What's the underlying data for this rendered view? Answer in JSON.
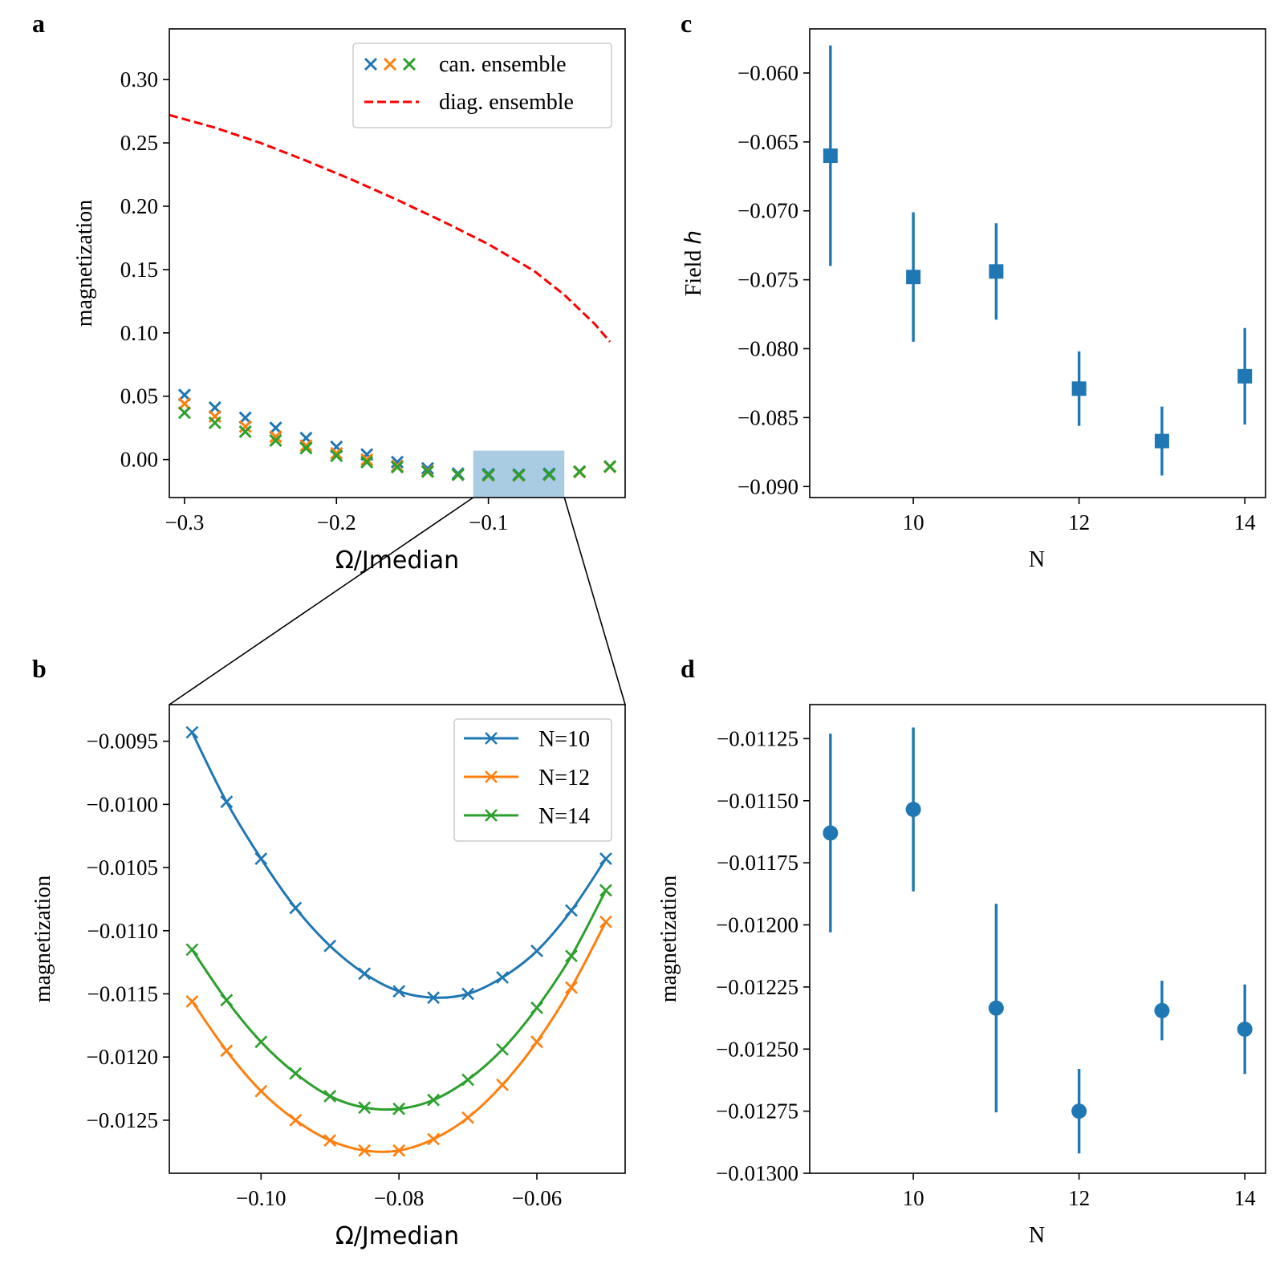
{
  "chart_data": [
    {
      "id": "a",
      "panel_letter": "a",
      "type": "scatter",
      "xlabel": "Ω/Jmedian",
      "ylabel": "magnetization",
      "xlim": [
        -0.31,
        -0.01
      ],
      "ylim": [
        -0.03,
        0.34
      ],
      "xticks": [
        -0.3,
        -0.2,
        -0.1
      ],
      "xtick_labels": [
        "−0.3",
        "−0.2",
        "−0.1"
      ],
      "yticks": [
        0.0,
        0.05,
        0.1,
        0.15,
        0.2,
        0.25,
        0.3
      ],
      "ytick_labels": [
        "0.00",
        "0.05",
        "0.10",
        "0.15",
        "0.20",
        "0.25",
        "0.30"
      ],
      "legend_position": "top-right",
      "legend": [
        {
          "label": "can. ensemble",
          "kind": "markers",
          "colors": [
            "#1f77b4",
            "#ff7f0e",
            "#2ca02c"
          ]
        },
        {
          "label": "diag. ensemble",
          "kind": "dashed",
          "color": "#ff0000"
        }
      ],
      "x": [
        -0.3,
        -0.28,
        -0.26,
        -0.24,
        -0.22,
        -0.2,
        -0.18,
        -0.16,
        -0.14,
        -0.12,
        -0.1,
        -0.08,
        -0.06,
        -0.04,
        -0.02
      ],
      "series": [
        {
          "color": "#1f77b4",
          "marker": "x",
          "values": [
            0.051,
            0.041,
            0.033,
            0.025,
            0.017,
            0.01,
            0.004,
            -0.002,
            -0.007,
            -0.011,
            -0.0115,
            -0.0118,
            -0.0112,
            -0.0095,
            -0.0055
          ]
        },
        {
          "color": "#ff7f0e",
          "marker": "x",
          "values": [
            0.044,
            0.034,
            0.026,
            0.018,
            0.011,
            0.005,
            0.0,
            -0.005,
            -0.009,
            -0.012,
            -0.0125,
            -0.0126,
            -0.012,
            -0.0099,
            -0.0057
          ]
        },
        {
          "color": "#2ca02c",
          "marker": "x",
          "values": [
            0.037,
            0.029,
            0.022,
            0.015,
            0.009,
            0.003,
            -0.002,
            -0.006,
            -0.0095,
            -0.0121,
            -0.0123,
            -0.0124,
            -0.0119,
            -0.0095,
            -0.0055
          ]
        }
      ],
      "diag_line": {
        "color": "#ff0000",
        "x": [
          -0.31,
          -0.28,
          -0.25,
          -0.22,
          -0.19,
          -0.16,
          -0.13,
          -0.1,
          -0.07,
          -0.05,
          -0.03,
          -0.02
        ],
        "values": [
          0.272,
          0.262,
          0.25,
          0.236,
          0.221,
          0.205,
          0.188,
          0.17,
          0.149,
          0.13,
          0.107,
          0.093
        ]
      },
      "highlight_region": {
        "x_range": [
          -0.11,
          -0.05
        ],
        "y_range": [
          -0.03,
          0.007
        ],
        "color": "#a9cce3"
      }
    },
    {
      "id": "b",
      "panel_letter": "b",
      "type": "line",
      "xlabel": "Ω/Jmedian",
      "ylabel": "magnetization",
      "xlim": [
        -0.1133,
        -0.0472
      ],
      "ylim": [
        -0.01292,
        -0.00921
      ],
      "xticks": [
        -0.1,
        -0.08,
        -0.06
      ],
      "xtick_labels": [
        "−0.10",
        "−0.08",
        "−0.06"
      ],
      "yticks": [
        -0.0095,
        -0.01,
        -0.0105,
        -0.011,
        -0.0115,
        -0.012,
        -0.0125
      ],
      "ytick_labels": [
        "−0.0095",
        "−0.0100",
        "−0.0105",
        "−0.0110",
        "−0.0115",
        "−0.0120",
        "−0.0125"
      ],
      "legend_position": "top-right",
      "x": [
        -0.11,
        -0.105,
        -0.1,
        -0.095,
        -0.09,
        -0.085,
        -0.08,
        -0.075,
        -0.07,
        -0.065,
        -0.06,
        -0.055,
        -0.05
      ],
      "series": [
        {
          "name": "N=10",
          "color": "#1f77b4",
          "values": [
            -0.00943,
            -0.00998,
            -0.01043,
            -0.01082,
            -0.01112,
            -0.01134,
            -0.01148,
            -0.01153,
            -0.0115,
            -0.01137,
            -0.01116,
            -0.01084,
            -0.01043
          ]
        },
        {
          "name": "N=12",
          "color": "#ff7f0e",
          "values": [
            -0.01156,
            -0.01195,
            -0.01227,
            -0.0125,
            -0.01266,
            -0.01274,
            -0.01274,
            -0.01265,
            -0.01248,
            -0.01222,
            -0.01188,
            -0.01145,
            -0.01093
          ]
        },
        {
          "name": "N=14",
          "color": "#2ca02c",
          "values": [
            -0.01115,
            -0.01155,
            -0.01188,
            -0.01213,
            -0.01231,
            -0.0124,
            -0.01241,
            -0.01234,
            -0.01218,
            -0.01194,
            -0.01161,
            -0.0112,
            -0.01068
          ]
        }
      ]
    },
    {
      "id": "c",
      "panel_letter": "c",
      "type": "scatter",
      "xlabel": "N",
      "ylabel_prefix": "Field ",
      "ylabel_symbol": "h",
      "xlim": [
        8.75,
        14.25
      ],
      "ylim": [
        -0.0908,
        -0.0568
      ],
      "xticks": [
        10,
        12,
        14
      ],
      "xtick_labels": [
        "10",
        "12",
        "14"
      ],
      "yticks": [
        -0.06,
        -0.065,
        -0.07,
        -0.075,
        -0.08,
        -0.085,
        -0.09
      ],
      "ytick_labels": [
        "−0.060",
        "−0.065",
        "−0.070",
        "−0.075",
        "−0.080",
        "−0.085",
        "−0.090"
      ],
      "marker": "square",
      "color": "#1f77b4",
      "x": [
        9,
        10,
        11,
        12,
        13,
        14
      ],
      "values": [
        -0.066,
        -0.0748,
        -0.0744,
        -0.0829,
        -0.0867,
        -0.082
      ],
      "errors": [
        0.008,
        0.0047,
        0.0035,
        0.0027,
        0.0025,
        0.0035
      ]
    },
    {
      "id": "d",
      "panel_letter": "d",
      "type": "scatter",
      "xlabel": "N",
      "ylabel": "magnetization",
      "xlim": [
        8.75,
        14.25
      ],
      "ylim": [
        -0.013,
        -0.011113
      ],
      "xticks": [
        10,
        12,
        14
      ],
      "xtick_labels": [
        "10",
        "12",
        "14"
      ],
      "yticks": [
        -0.01125,
        -0.0115,
        -0.01175,
        -0.012,
        -0.01225,
        -0.0125,
        -0.01275,
        -0.013
      ],
      "ytick_labels": [
        "−0.01125",
        "−0.01150",
        "−0.01175",
        "−0.01200",
        "−0.01225",
        "−0.01250",
        "−0.01275",
        "−0.01300"
      ],
      "marker": "circle",
      "color": "#1f77b4",
      "x": [
        9,
        10,
        11,
        12,
        13,
        14
      ],
      "values": [
        -0.01163,
        -0.011535,
        -0.012335,
        -0.01275,
        -0.012345,
        -0.01242
      ],
      "errors": [
        0.0004,
        0.00033,
        0.00042,
        0.00017,
        0.00012,
        0.00018
      ]
    }
  ]
}
